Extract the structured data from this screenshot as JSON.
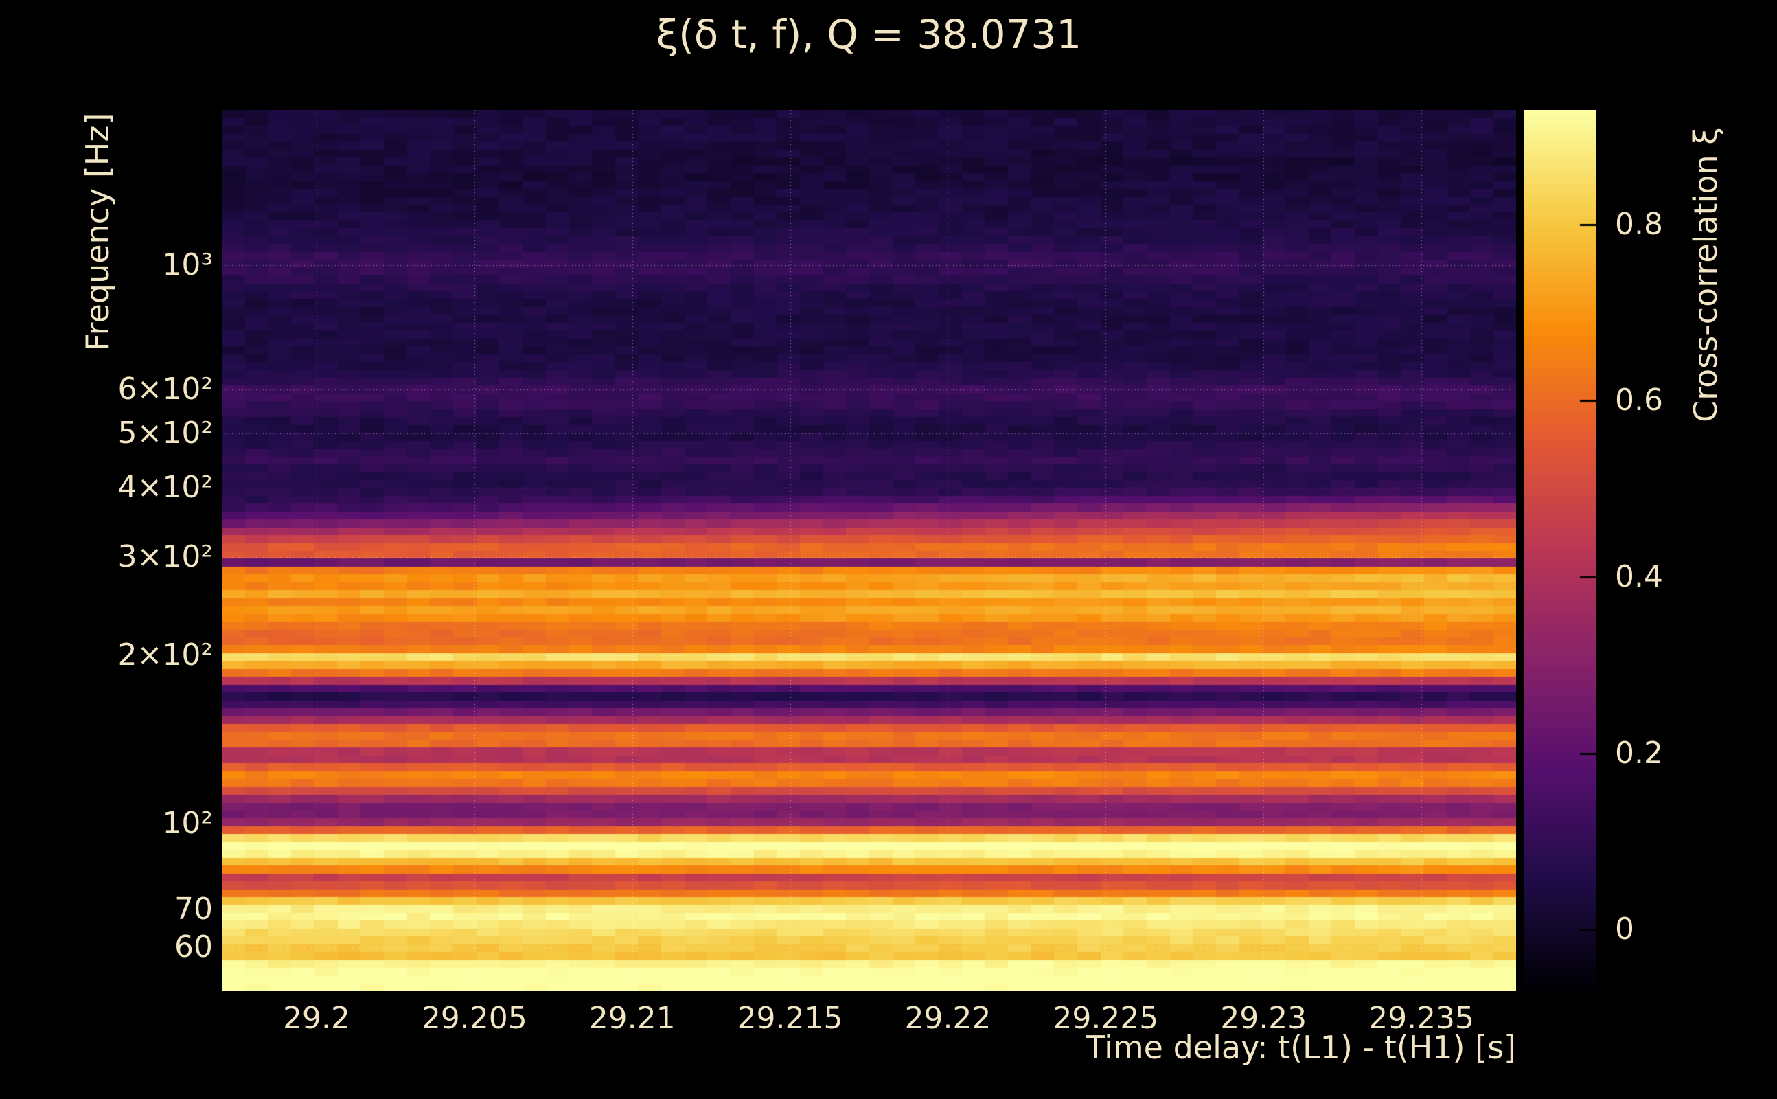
{
  "figure": {
    "background": "#000000",
    "text_color": "#f1e5c4",
    "grid_color": "rgba(255,255,255,0.5)"
  },
  "chart_data": {
    "type": "heatmap",
    "title": "ξ(δ t, f), Q = 38.0731",
    "q": 38.0731,
    "xlabel": "Time delay: t(L1) - t(H1) [s]",
    "ylabel": "Frequency [Hz]",
    "colorbar_label": "Cross-correlation ξ",
    "x_range": [
      29.197,
      29.238
    ],
    "x_ticks": [
      29.2,
      29.205,
      29.21,
      29.215,
      29.22,
      29.225,
      29.23,
      29.235
    ],
    "x_tick_labels": [
      "29.2",
      "29.205",
      "29.21",
      "29.215",
      "29.22",
      "29.225",
      "29.23",
      "29.235"
    ],
    "y_scale": "log",
    "y_range": [
      50,
      1900
    ],
    "y_ticks": [
      60,
      70,
      100,
      200,
      300,
      400,
      500,
      600,
      1000
    ],
    "y_tick_labels": [
      "60",
      "70",
      "10²",
      "2×10²",
      "3×10²",
      "4×10²",
      "5×10²",
      "6×10²",
      "10³"
    ],
    "grid": true,
    "colorbar": {
      "range": [
        -0.07,
        0.93
      ],
      "ticks": [
        0,
        0.2,
        0.4,
        0.6,
        0.8
      ],
      "tick_labels": [
        "0",
        "0.2",
        "0.4",
        "0.6",
        "0.8"
      ]
    },
    "colormap": [
      [
        0,
        "#000004"
      ],
      [
        0.125,
        "#1f0c48"
      ],
      [
        0.25,
        "#550f6d"
      ],
      [
        0.375,
        "#88226a"
      ],
      [
        0.5,
        "#ba3655"
      ],
      [
        0.625,
        "#e35933"
      ],
      [
        0.75,
        "#f98c0a"
      ],
      [
        0.875,
        "#f6c942"
      ],
      [
        1,
        "#fcffa4"
      ]
    ],
    "heatmap": {
      "x_columns": 56,
      "frequencies": [
        50,
        53,
        56,
        58,
        60,
        63,
        66,
        69,
        72,
        75,
        78,
        80,
        83,
        86,
        89,
        93,
        97,
        101,
        105,
        109,
        113,
        117,
        121,
        125,
        129,
        133,
        137,
        141,
        145,
        149,
        153,
        157,
        161,
        166,
        171,
        176,
        181,
        186,
        191,
        196,
        200,
        205,
        210,
        216,
        222,
        228,
        234,
        240,
        247,
        254,
        261,
        268,
        275,
        282,
        289,
        294,
        300,
        308,
        316,
        325,
        334,
        344,
        354,
        365,
        376,
        388,
        400,
        415,
        432,
        450,
        468,
        490,
        515,
        540,
        570,
        600,
        630,
        665,
        705,
        750,
        800,
        855,
        915,
        975,
        1030,
        1090,
        1160,
        1240,
        1330,
        1430,
        1540,
        1660,
        1790,
        1900
      ],
      "xi_left": [
        0.93,
        0.95,
        0.9,
        0.78,
        0.8,
        0.83,
        0.88,
        0.92,
        0.85,
        0.62,
        0.5,
        0.45,
        0.68,
        0.8,
        0.93,
        0.95,
        0.6,
        0.3,
        0.25,
        0.28,
        0.45,
        0.6,
        0.68,
        0.6,
        0.45,
        0.32,
        0.55,
        0.65,
        0.6,
        0.55,
        0.38,
        0.28,
        0.18,
        0.08,
        0.06,
        0.2,
        0.45,
        0.62,
        0.72,
        0.8,
        0.87,
        0.65,
        0.58,
        0.62,
        0.57,
        0.63,
        0.68,
        0.74,
        0.62,
        0.7,
        0.76,
        0.62,
        0.68,
        0.78,
        0.3,
        0.22,
        0.52,
        0.58,
        0.52,
        0.45,
        0.36,
        0.26,
        0.18,
        0.12,
        0.09,
        0.07,
        0.06,
        0.06,
        0.08,
        0.11,
        0.08,
        0.05,
        0.05,
        0.07,
        0.11,
        0.12,
        0.08,
        0.05,
        0.04,
        0.05,
        0.05,
        0.04,
        0.07,
        0.1,
        0.11,
        0.07,
        0.05,
        0.04,
        0.03,
        0.02,
        0.03,
        0.04,
        0.03,
        0.03
      ],
      "xi_right": [
        0.95,
        0.96,
        0.92,
        0.8,
        0.82,
        0.85,
        0.88,
        0.93,
        0.87,
        0.65,
        0.52,
        0.48,
        0.7,
        0.82,
        0.94,
        0.95,
        0.62,
        0.32,
        0.27,
        0.3,
        0.47,
        0.62,
        0.7,
        0.6,
        0.47,
        0.34,
        0.57,
        0.66,
        0.62,
        0.55,
        0.4,
        0.3,
        0.2,
        0.1,
        0.08,
        0.22,
        0.47,
        0.64,
        0.74,
        0.82,
        0.88,
        0.67,
        0.62,
        0.66,
        0.62,
        0.68,
        0.72,
        0.78,
        0.68,
        0.78,
        0.84,
        0.72,
        0.78,
        0.84,
        0.38,
        0.3,
        0.62,
        0.68,
        0.64,
        0.6,
        0.56,
        0.52,
        0.46,
        0.36,
        0.24,
        0.14,
        0.09,
        0.07,
        0.08,
        0.11,
        0.08,
        0.06,
        0.05,
        0.07,
        0.12,
        0.12,
        0.08,
        0.05,
        0.04,
        0.05,
        0.04,
        0.05,
        0.06,
        0.09,
        0.1,
        0.07,
        0.05,
        0.04,
        0.04,
        0.03,
        0.02,
        0.03,
        0.04,
        0.03
      ]
    }
  }
}
